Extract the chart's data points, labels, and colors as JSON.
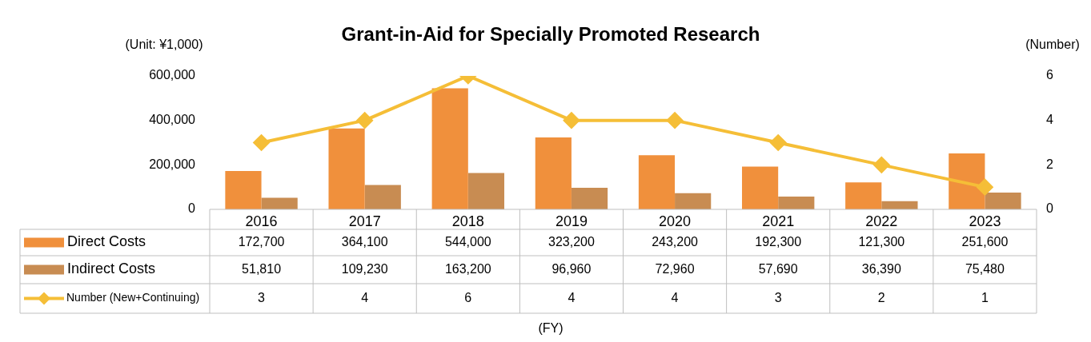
{
  "chart_data": {
    "type": "bar",
    "title": "Grant-in-Aid for Specially Promoted Research",
    "ylabel": "(Unit: ¥1,000)",
    "y2label": "(Number)",
    "annotations": [
      "(FY)"
    ],
    "categories": [
      "2016",
      "2017",
      "2018",
      "2019",
      "2020",
      "2021",
      "2022",
      "2023"
    ],
    "series": [
      {
        "name": "Direct Costs",
        "color": "#f0903c",
        "values": [
          172700,
          364100,
          544000,
          323200,
          243200,
          192300,
          121300,
          251600
        ],
        "value_labels": [
          "172,700",
          "364,100",
          "544,000",
          "323,200",
          "243,200",
          "192,300",
          "121,300",
          "251,600"
        ]
      },
      {
        "name": "Indirect Costs",
        "color": "#c88c52",
        "values": [
          51810,
          109230,
          163200,
          96960,
          72960,
          57690,
          36390,
          75480
        ],
        "value_labels": [
          "51,810",
          "109,230",
          "163,200",
          "96,960",
          "72,960",
          "57,690",
          "36,390",
          "75,480"
        ]
      },
      {
        "name": "Number (New+Continuing)",
        "type": "line",
        "axis": "y2",
        "color": "#f5be37",
        "values": [
          3,
          4,
          6,
          4,
          4,
          3,
          2,
          1
        ],
        "value_labels": [
          "3",
          "4",
          "6",
          "4",
          "4",
          "3",
          "2",
          "1"
        ]
      }
    ],
    "ylim": [
      0,
      600000
    ],
    "yticks": [
      {
        "value": 0,
        "label": "0"
      },
      {
        "value": 200000,
        "label": "200,000"
      },
      {
        "value": 400000,
        "label": "400,000"
      },
      {
        "value": 600000,
        "label": "600,000"
      }
    ],
    "y2lim": [
      0,
      6
    ],
    "y2ticks": [
      0,
      2,
      4,
      6
    ],
    "grid": false,
    "legend": "bottom",
    "marker": "diamond",
    "line_style": "solid"
  }
}
